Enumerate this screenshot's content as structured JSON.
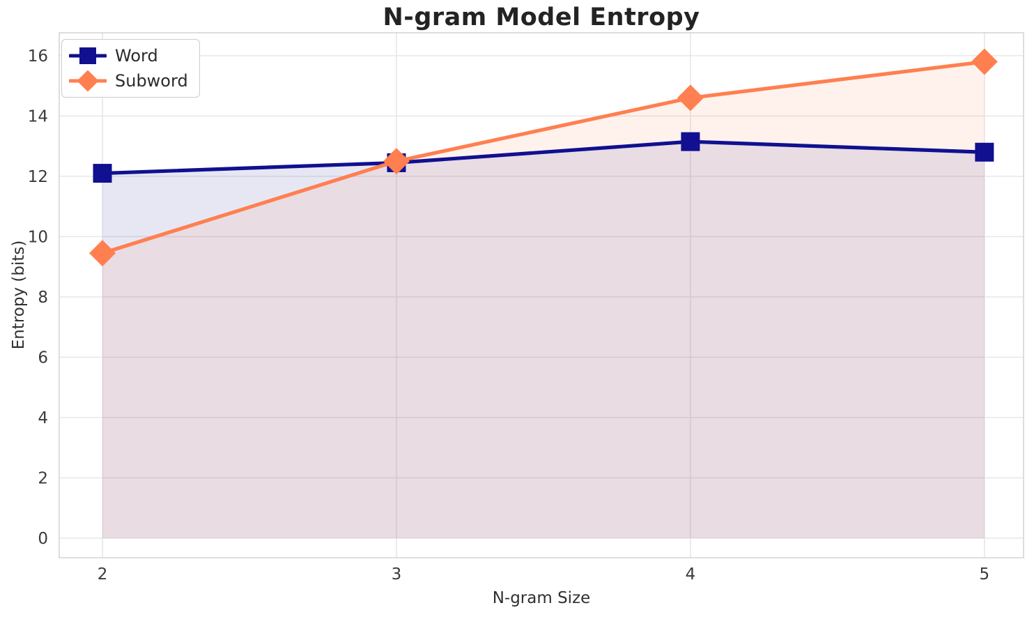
{
  "chart_data": {
    "type": "line",
    "title": "N-gram Model Entropy",
    "xlabel": "N-gram Size",
    "ylabel": "Entropy (bits)",
    "x": [
      2,
      3,
      4,
      5
    ],
    "xticks": [
      "2",
      "3",
      "4",
      "5"
    ],
    "yticks": [
      0,
      2,
      4,
      6,
      8,
      10,
      12,
      14,
      16
    ],
    "xlim": [
      1.853,
      5.133
    ],
    "ylim": [
      -0.65,
      16.76
    ],
    "grid": true,
    "legend_position": "upper-left",
    "fill_baseline": 0,
    "series": [
      {
        "name": "Word",
        "color": "#101090",
        "marker": "square",
        "values": [
          12.1,
          12.45,
          13.15,
          12.8
        ],
        "fill_opacity": 0.1
      },
      {
        "name": "Subword",
        "color": "#FF7F50",
        "marker": "diamond",
        "values": [
          9.45,
          12.5,
          14.6,
          15.8
        ],
        "fill_opacity": 0.1
      }
    ],
    "colors": {
      "grid": "#e7e7e7",
      "spine": "#d5d5d5",
      "tick_label": "#3a3a3a",
      "title": "#232323",
      "background": "#ffffff"
    }
  }
}
